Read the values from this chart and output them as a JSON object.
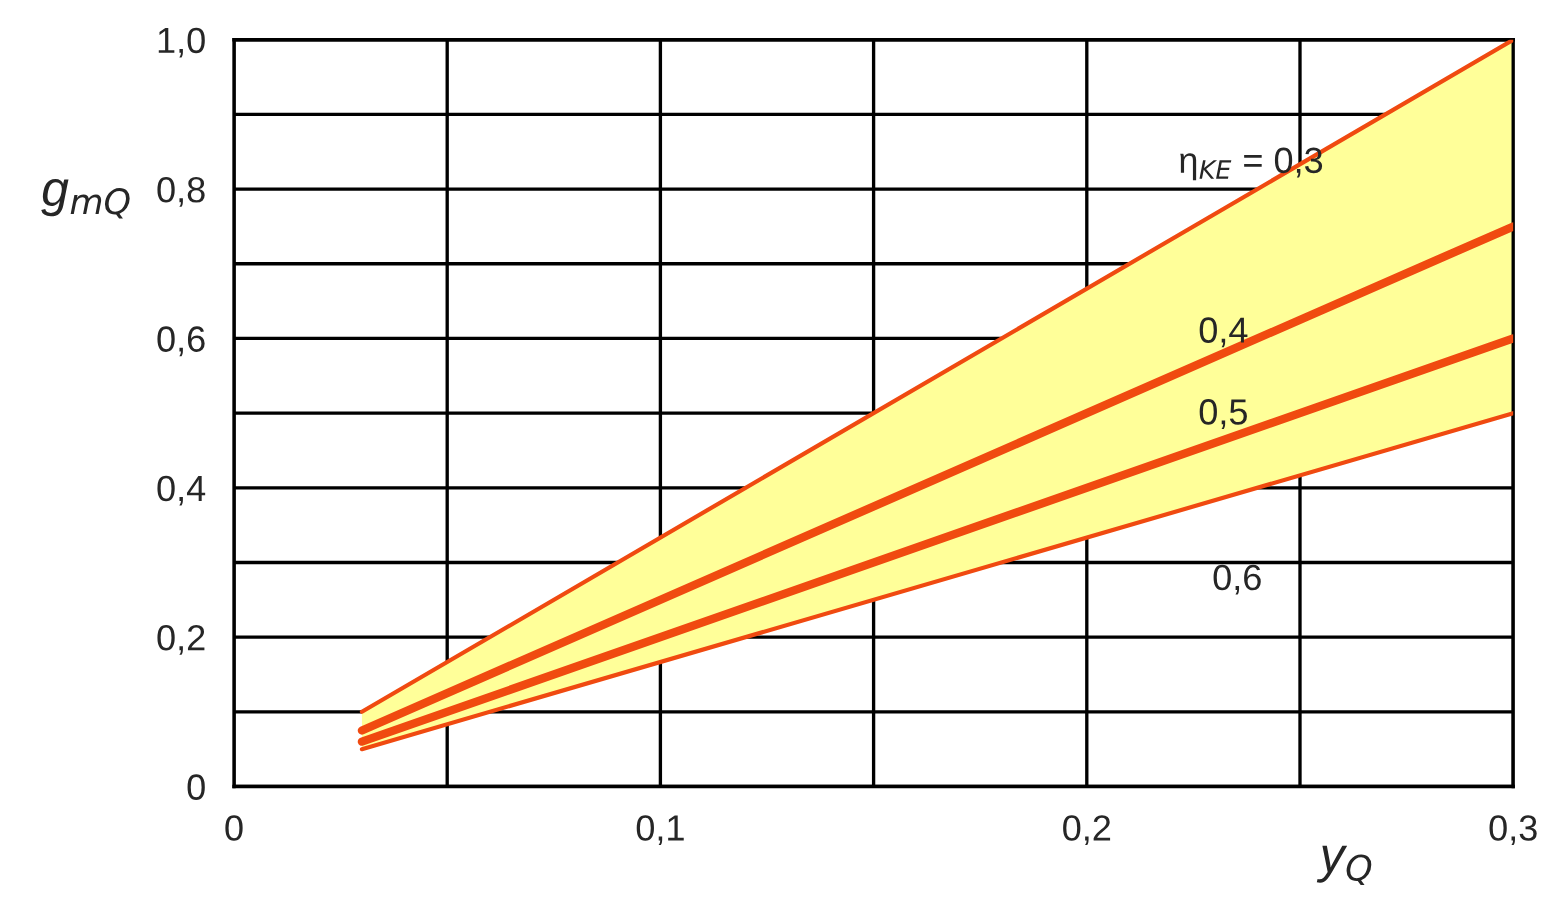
{
  "chart_data": {
    "type": "line",
    "xlabel": "y$_{Q}$",
    "ylabel": "g$_{mQ}$",
    "xlim": [
      0,
      0.3
    ],
    "ylim": [
      0,
      1.0
    ],
    "xticks": [
      0,
      {
        "value": 0.05,
        "label": null
      },
      {
        "value": 0.1,
        "label": "0,1"
      },
      {
        "value": 0.15,
        "label": null
      },
      {
        "value": 0.2,
        "label": "0,2"
      },
      {
        "value": 0.25,
        "label": null
      },
      {
        "value": 0.3,
        "label": "0,3"
      }
    ],
    "yticks": [
      0,
      {
        "value": 0.1,
        "label": null
      },
      {
        "value": 0.2,
        "label": "0,2"
      },
      {
        "value": 0.3,
        "label": null
      },
      {
        "value": 0.4,
        "label": "0,4"
      },
      {
        "value": 0.5,
        "label": null
      },
      {
        "value": 0.6,
        "label": "0,6"
      },
      {
        "value": 0.7,
        "label": null
      },
      {
        "value": 0.8,
        "label": "0,8"
      },
      {
        "value": 0.9,
        "label": null
      },
      {
        "value": 1.0,
        "label": "1,0"
      }
    ],
    "grid": true,
    "legend": false,
    "marker": "none",
    "line_style": "solid",
    "x": [
      0.03,
      0.3
    ],
    "series": [
      {
        "name": "η$_{KE}$ = 0,3",
        "color": "#f04a10",
        "values": [
          0.1,
          1.0
        ],
        "lower": [
          0.05,
          0.5
        ],
        "upper": [
          0.1,
          1.0
        ]
      },
      {
        "name": "0,4",
        "color": "#f04a10",
        "values": [
          0.075,
          0.75
        ]
      },
      {
        "name": "0,5",
        "color": "#f04a10",
        "values": [
          0.06,
          0.6
        ]
      },
      {
        "name": "0,6",
        "color": "#f04a10",
        "values": [
          0.05,
          0.5
        ]
      }
    ]
  }
}
